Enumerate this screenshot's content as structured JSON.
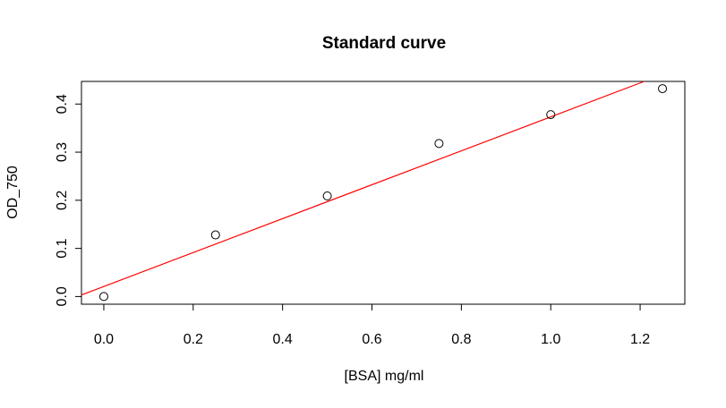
{
  "chart_data": {
    "type": "scatter",
    "title": "Standard curve",
    "xlabel": "[BSA] mg/ml",
    "ylabel": "OD_750",
    "xlim": [
      -0.05,
      1.3
    ],
    "ylim": [
      -0.016,
      0.447
    ],
    "x_ticks": [
      "0.0",
      "0.2",
      "0.4",
      "0.6",
      "0.8",
      "1.0",
      "1.2"
    ],
    "y_ticks": [
      "0.0",
      "0.1",
      "0.2",
      "0.3",
      "0.4"
    ],
    "points": [
      {
        "x": 0.0,
        "y": 0.0
      },
      {
        "x": 0.25,
        "y": 0.128
      },
      {
        "x": 0.5,
        "y": 0.209
      },
      {
        "x": 0.75,
        "y": 0.318
      },
      {
        "x": 1.0,
        "y": 0.378
      },
      {
        "x": 1.25,
        "y": 0.432
      }
    ],
    "fit_line": {
      "intercept": 0.0208,
      "slope": 0.3525,
      "color": "#ff0000"
    },
    "point_style": "open-circle",
    "grid": false,
    "legend": "none"
  }
}
